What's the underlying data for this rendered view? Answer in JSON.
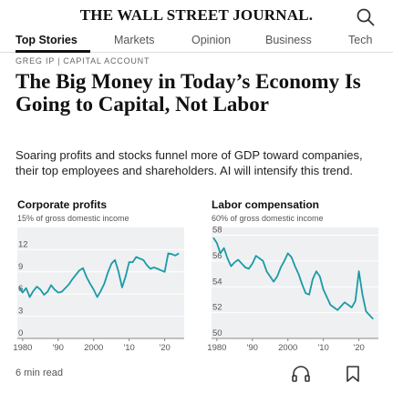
{
  "masthead": {
    "brand": "THE WALL STREET JOURNAL.",
    "search_icon": "search-icon"
  },
  "nav": {
    "tabs": [
      {
        "label": "Top Stories",
        "active": true
      },
      {
        "label": "Markets",
        "active": false
      },
      {
        "label": "Opinion",
        "active": false
      },
      {
        "label": "Business",
        "active": false
      },
      {
        "label": "Tech",
        "active": false
      }
    ]
  },
  "article": {
    "kicker_author": "GREG IP",
    "kicker_section": "CAPITAL ACCOUNT",
    "headline": "The Big Money in Today’s Economy Is Going to Capital, Not Labor",
    "dek": "Soaring profits and stocks funnel more of GDP toward companies, their top employees and shareholders. AI will intensify this trend.",
    "read_time": "6 min read"
  },
  "chart_data": [
    {
      "type": "line",
      "title": "Corporate profits",
      "subtitle": "15% of gross domestic income",
      "color": "#1a9aa6",
      "ylim": [
        0,
        15
      ],
      "yticks": [
        "0",
        "3",
        "6",
        "9",
        "12"
      ],
      "xticks": [
        "1980",
        "'90",
        "2000",
        "'10",
        "'20"
      ],
      "x": [
        1979,
        1980,
        1981,
        1982,
        1983,
        1984,
        1985,
        1986,
        1987,
        1988,
        1989,
        1990,
        1991,
        1992,
        1993,
        1994,
        1995,
        1996,
        1997,
        1998,
        1999,
        2000,
        2001,
        2002,
        2003,
        2004,
        2005,
        2006,
        2007,
        2008,
        2009,
        2010,
        2011,
        2012,
        2013,
        2014,
        2015,
        2016,
        2017,
        2018,
        2019,
        2020,
        2021,
        2022,
        2023,
        2024
      ],
      "values": [
        7.0,
        6.2,
        6.8,
        5.6,
        6.4,
        7.0,
        6.6,
        5.9,
        6.3,
        7.2,
        6.6,
        6.2,
        6.3,
        6.8,
        7.3,
        8.0,
        8.6,
        9.2,
        9.5,
        8.3,
        7.4,
        6.6,
        5.6,
        6.4,
        7.4,
        8.9,
        10.1,
        10.6,
        9.0,
        6.9,
        8.4,
        10.3,
        10.3,
        11.0,
        10.8,
        10.6,
        9.9,
        9.4,
        9.6,
        9.4,
        9.2,
        9.0,
        11.5,
        11.4,
        11.2,
        11.5
      ]
    },
    {
      "type": "line",
      "title": "Labor compensation",
      "subtitle": "60% of gross domestic income",
      "color": "#1a9aa6",
      "ylim": [
        50,
        58.6
      ],
      "yticks": [
        "50",
        "52",
        "54",
        "56",
        "58"
      ],
      "xticks": [
        "1980",
        "'90",
        "2000",
        "'10",
        "'20"
      ],
      "x": [
        1979,
        1980,
        1981,
        1982,
        1983,
        1984,
        1985,
        1986,
        1987,
        1988,
        1989,
        1990,
        1991,
        1992,
        1993,
        1994,
        1995,
        1996,
        1997,
        1998,
        1999,
        2000,
        2001,
        2002,
        2003,
        2004,
        2005,
        2006,
        2007,
        2008,
        2009,
        2010,
        2011,
        2012,
        2013,
        2014,
        2015,
        2016,
        2017,
        2018,
        2019,
        2020,
        2021,
        2022,
        2023,
        2024
      ],
      "values": [
        57.8,
        57.4,
        56.6,
        57.0,
        56.2,
        55.6,
        55.9,
        56.1,
        55.8,
        55.5,
        55.4,
        55.8,
        56.4,
        56.2,
        56.0,
        55.2,
        54.8,
        54.4,
        54.8,
        55.5,
        56.0,
        56.6,
        56.3,
        55.6,
        55.0,
        54.2,
        53.5,
        53.4,
        54.6,
        55.2,
        54.8,
        53.8,
        53.2,
        52.6,
        52.4,
        52.2,
        52.5,
        52.8,
        52.6,
        52.4,
        52.9,
        55.2,
        53.4,
        52.1,
        51.8,
        51.5
      ]
    }
  ],
  "actions": {
    "listen_icon": "headphones-icon",
    "save_icon": "bookmark-icon"
  }
}
